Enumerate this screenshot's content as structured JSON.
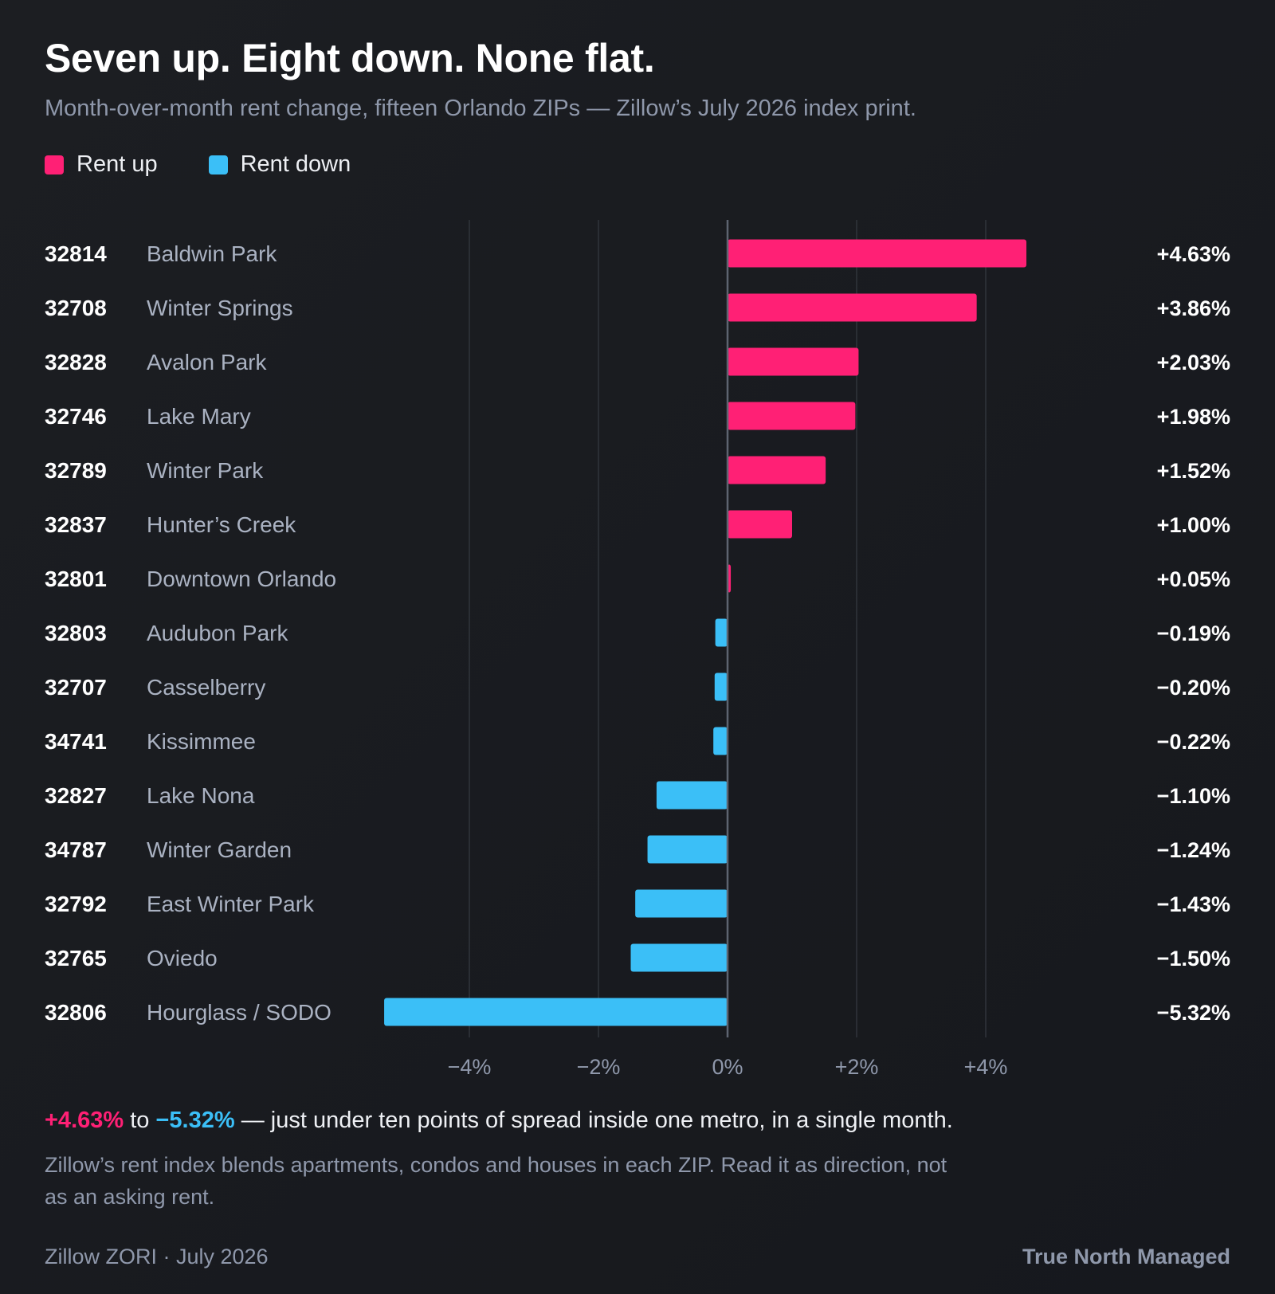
{
  "header": {
    "title": "Seven up. Eight down. None flat.",
    "subtitle": "Month-over-month rent change, fifteen Orlando ZIPs — Zillow’s July 2026 index print."
  },
  "legend": {
    "up_label": "Rent up",
    "down_label": "Rent down"
  },
  "colors": {
    "up": "#ff2075",
    "down": "#3bbff7",
    "grid": "#30343b",
    "axis": "#5d6470"
  },
  "chart_data": {
    "type": "bar",
    "orientation": "horizontal",
    "xlim": [
      -6.4,
      8
    ],
    "x_ticks": [
      -4,
      -2,
      0,
      2,
      4
    ],
    "x_tick_labels": [
      "−4%",
      "−2%",
      "0%",
      "+2%",
      "+4%"
    ],
    "grid": true,
    "rows": [
      {
        "zip": "32814",
        "name": "Baldwin Park",
        "value": 4.63,
        "label": "+4.63%"
      },
      {
        "zip": "32708",
        "name": "Winter Springs",
        "value": 3.86,
        "label": "+3.86%"
      },
      {
        "zip": "32828",
        "name": "Avalon Park",
        "value": 2.03,
        "label": "+2.03%"
      },
      {
        "zip": "32746",
        "name": "Lake Mary",
        "value": 1.98,
        "label": "+1.98%"
      },
      {
        "zip": "32789",
        "name": "Winter Park",
        "value": 1.52,
        "label": "+1.52%"
      },
      {
        "zip": "32837",
        "name": "Hunter’s Creek",
        "value": 1.0,
        "label": "+1.00%"
      },
      {
        "zip": "32801",
        "name": "Downtown Orlando",
        "value": 0.05,
        "label": "+0.05%"
      },
      {
        "zip": "32803",
        "name": "Audubon Park",
        "value": -0.19,
        "label": "−0.19%"
      },
      {
        "zip": "32707",
        "name": "Casselberry",
        "value": -0.2,
        "label": "−0.20%"
      },
      {
        "zip": "34741",
        "name": "Kissimmee",
        "value": -0.22,
        "label": "−0.22%"
      },
      {
        "zip": "32827",
        "name": "Lake Nona",
        "value": -1.1,
        "label": "−1.10%"
      },
      {
        "zip": "34787",
        "name": "Winter Garden",
        "value": -1.24,
        "label": "−1.24%"
      },
      {
        "zip": "32792",
        "name": "East Winter Park",
        "value": -1.43,
        "label": "−1.43%"
      },
      {
        "zip": "32765",
        "name": "Oviedo",
        "value": -1.5,
        "label": "−1.50%"
      },
      {
        "zip": "32806",
        "name": "Hourglass / SODO",
        "value": -5.32,
        "label": "−5.32%"
      }
    ]
  },
  "summary": {
    "high": "+4.63%",
    "connector": " to ",
    "low": "−5.32%",
    "text": " — just under ten points of spread inside one metro, in a single month."
  },
  "note": "Zillow’s rent index blends apartments, condos and houses in each ZIP. Read it as direction, not as an asking rent.",
  "footer": {
    "source": "Zillow ZORI · July 2026",
    "brand": "True North Managed"
  }
}
